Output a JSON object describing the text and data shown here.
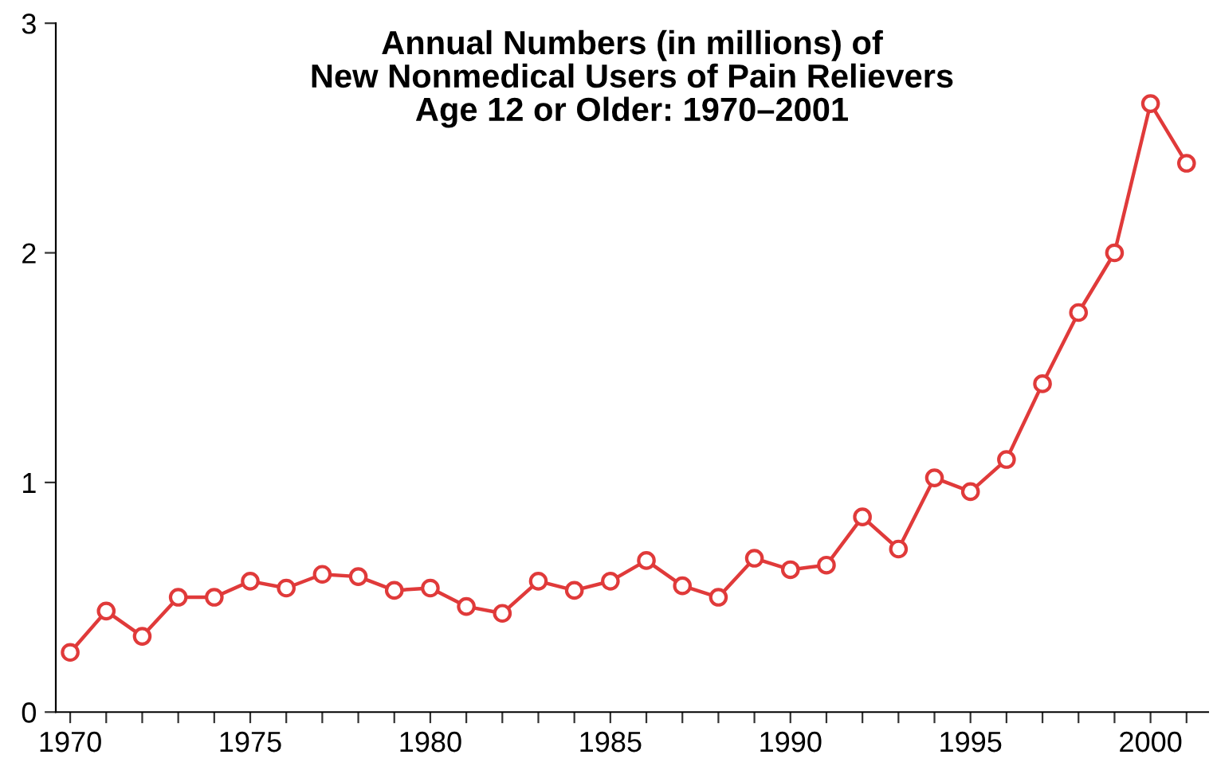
{
  "chart_data": {
    "type": "line",
    "title": "Annual Numbers (in millions) of\nNew Nonmedical Users of Pain Relievers\nAge 12 or Older: 1970–2001",
    "x": [
      1970,
      1971,
      1972,
      1973,
      1974,
      1975,
      1976,
      1977,
      1978,
      1979,
      1980,
      1981,
      1982,
      1983,
      1984,
      1985,
      1986,
      1987,
      1988,
      1989,
      1990,
      1991,
      1992,
      1993,
      1994,
      1995,
      1996,
      1997,
      1998,
      1999,
      2000,
      2001
    ],
    "series": [
      {
        "color": "#e03a3a",
        "values": [
          0.26,
          0.44,
          0.33,
          0.5,
          0.5,
          0.57,
          0.54,
          0.6,
          0.59,
          0.53,
          0.54,
          0.46,
          0.43,
          0.57,
          0.53,
          0.57,
          0.66,
          0.55,
          0.5,
          0.67,
          0.62,
          0.64,
          0.85,
          0.71,
          1.02,
          0.96,
          1.1,
          1.43,
          1.74,
          2.0,
          2.65,
          2.39
        ]
      }
    ],
    "xlim": [
      1969.6,
      2001.6
    ],
    "xticks": [
      1970,
      {
        "value": 1971,
        "label": null
      },
      {
        "value": 1972,
        "label": null
      },
      {
        "value": 1973,
        "label": null
      },
      {
        "value": 1974,
        "label": null
      },
      1975,
      {
        "value": 1976,
        "label": null
      },
      {
        "value": 1977,
        "label": null
      },
      {
        "value": 1978,
        "label": null
      },
      {
        "value": 1979,
        "label": null
      },
      1980,
      {
        "value": 1981,
        "label": null
      },
      {
        "value": 1982,
        "label": null
      },
      {
        "value": 1983,
        "label": null
      },
      {
        "value": 1984,
        "label": null
      },
      1985,
      {
        "value": 1986,
        "label": null
      },
      {
        "value": 1987,
        "label": null
      },
      {
        "value": 1988,
        "label": null
      },
      {
        "value": 1989,
        "label": null
      },
      1990,
      {
        "value": 1991,
        "label": null
      },
      {
        "value": 1992,
        "label": null
      },
      {
        "value": 1993,
        "label": null
      },
      {
        "value": 1994,
        "label": null
      },
      1995,
      {
        "value": 1996,
        "label": null
      },
      {
        "value": 1997,
        "label": null
      },
      {
        "value": 1998,
        "label": null
      },
      {
        "value": 1999,
        "label": null
      },
      2000,
      {
        "value": 2001,
        "label": null
      }
    ],
    "ylim": [
      0,
      3
    ],
    "yticks": [
      0,
      1,
      2,
      3
    ],
    "grid": false,
    "marker": "circle",
    "line_style": "solid"
  }
}
